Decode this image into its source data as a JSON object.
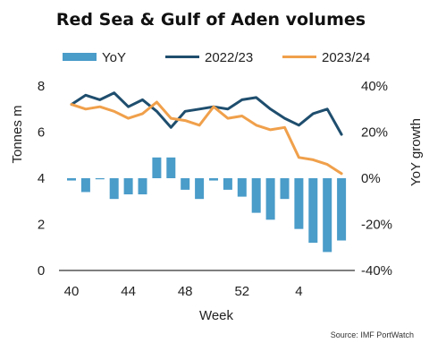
{
  "chart_data": {
    "type": "bar+line",
    "title": "Red Sea & Gulf of Aden volumes",
    "xlabel": "Week",
    "ylabel": "Tonnes m",
    "y2label": "YoY growth",
    "source": "Source: IMF PortWatch",
    "x": [
      40,
      41,
      42,
      43,
      44,
      45,
      46,
      47,
      48,
      49,
      50,
      51,
      52,
      1,
      2,
      3,
      4,
      5,
      6,
      7
    ],
    "xticks": [
      {
        "value": 40,
        "label": "40"
      },
      {
        "value": 44,
        "label": "44"
      },
      {
        "value": 48,
        "label": "48"
      },
      {
        "value": 52,
        "label": "52"
      },
      {
        "value": 4,
        "label": "4"
      }
    ],
    "ylim": [
      0,
      8
    ],
    "yticks": [
      "0",
      "2",
      "4",
      "6",
      "8"
    ],
    "y2lim": [
      -40,
      40
    ],
    "y2ticks": [
      "-40%",
      "-20%",
      "0%",
      "20%",
      "40%"
    ],
    "legend_position": "top",
    "series": [
      {
        "name": "YoY",
        "type": "bar",
        "axis": "right",
        "color": "#4a9cc9",
        "values": [
          -1,
          -6,
          0,
          -9,
          -7,
          -7,
          9,
          9,
          -5,
          -9,
          -1,
          -5,
          -8,
          -15,
          -18,
          -9,
          -22,
          -28,
          -32,
          -27
        ]
      },
      {
        "name": "2022/23",
        "type": "line",
        "axis": "left",
        "color": "#1f4e6e",
        "values": [
          7.2,
          7.6,
          7.4,
          7.7,
          7.1,
          7.4,
          6.9,
          6.2,
          6.9,
          7.0,
          7.1,
          7.0,
          7.4,
          7.5,
          7.0,
          6.6,
          6.3,
          6.8,
          7.0,
          5.9
        ]
      },
      {
        "name": "2023/24",
        "type": "line",
        "axis": "left",
        "color": "#f0a04b",
        "values": [
          7.2,
          7.0,
          7.1,
          6.9,
          6.6,
          6.8,
          7.3,
          6.6,
          6.5,
          6.3,
          7.1,
          6.6,
          6.7,
          6.3,
          6.1,
          6.2,
          4.9,
          4.8,
          4.6,
          4.2
        ]
      }
    ]
  },
  "colors": {
    "bar": "#4a9cc9",
    "line_2022": "#1f4e6e",
    "line_2023": "#f0a04b",
    "axis": "#333333"
  }
}
